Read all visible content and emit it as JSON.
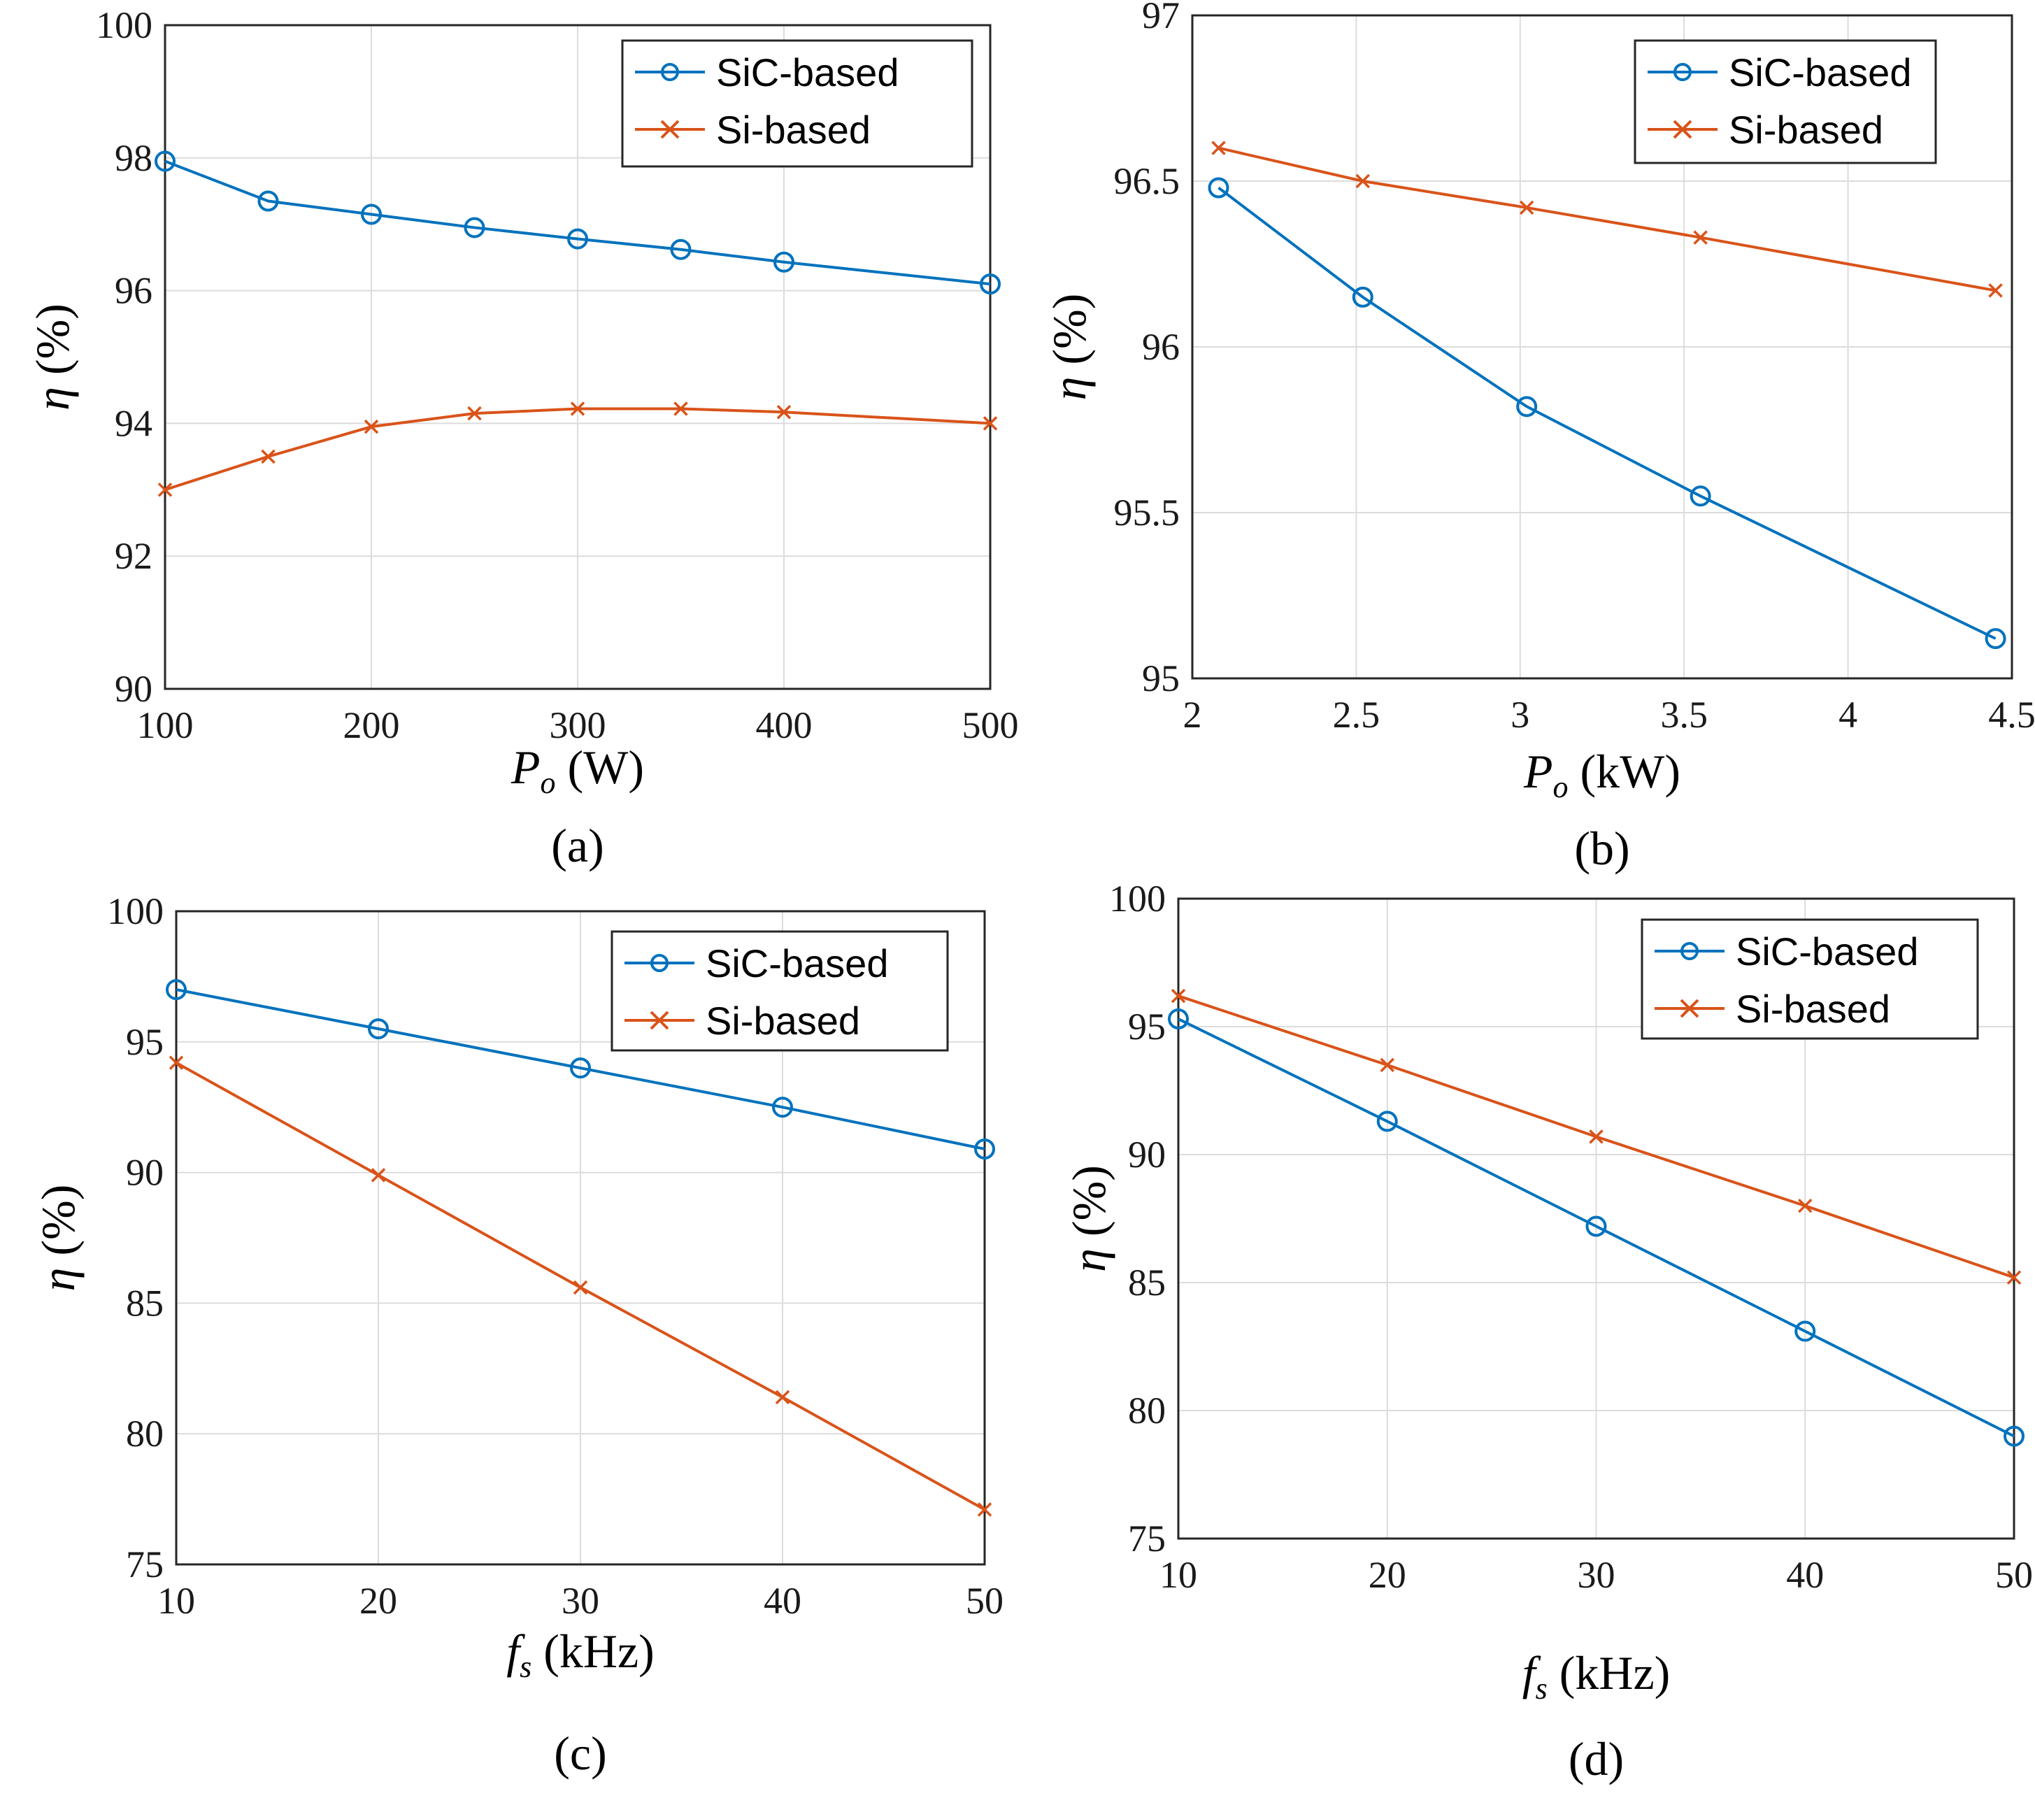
{
  "colors": {
    "sic": "#0072BD",
    "si": "#D95319",
    "grid": "#dcdcdc",
    "axis": "#262626"
  },
  "chart_data": [
    {
      "type": "line",
      "panel_label": "(a)",
      "xlabel": {
        "var": "P",
        "sub": "o",
        "unit": " (W)"
      },
      "ylabel": {
        "var": "η",
        "unit": " (%)"
      },
      "xlim": [
        100,
        500
      ],
      "ylim": [
        90,
        100
      ],
      "xticks": [
        100,
        200,
        300,
        400,
        500
      ],
      "xtick_labels": [
        "100",
        "200",
        "300",
        "400",
        "500"
      ],
      "yticks": [
        90,
        92,
        94,
        96,
        98,
        100
      ],
      "ytick_labels": [
        "90",
        "92",
        "94",
        "96",
        "98",
        "100"
      ],
      "legend_position": "top-right",
      "series": [
        {
          "name": "SiC-based",
          "marker": "circle",
          "color_key": "sic",
          "x": [
            100,
            150,
            200,
            250,
            300,
            350,
            400,
            500
          ],
          "y": [
            97.95,
            97.35,
            97.15,
            96.95,
            96.78,
            96.62,
            96.43,
            96.1
          ]
        },
        {
          "name": "Si-based",
          "marker": "cross",
          "color_key": "si",
          "x": [
            100,
            150,
            200,
            250,
            300,
            350,
            400,
            500
          ],
          "y": [
            93.0,
            93.5,
            93.95,
            94.15,
            94.22,
            94.22,
            94.17,
            94.0
          ]
        }
      ]
    },
    {
      "type": "line",
      "panel_label": "(b)",
      "xlabel": {
        "var": "P",
        "sub": "o",
        "unit": " (kW)"
      },
      "ylabel": {
        "var": "η",
        "unit": " (%)"
      },
      "xlim": [
        2,
        4.5
      ],
      "ylim": [
        95,
        97
      ],
      "xticks": [
        2,
        2.5,
        3,
        3.5,
        4,
        4.5
      ],
      "xtick_labels": [
        "2",
        "2.5",
        "3",
        "3.5",
        "4",
        "4.5"
      ],
      "yticks": [
        95,
        95.5,
        96,
        96.5,
        97
      ],
      "ytick_labels": [
        "95",
        "95.5",
        "96",
        "96.5",
        "97"
      ],
      "legend_position": "top-right",
      "series": [
        {
          "name": "SiC-based",
          "marker": "circle",
          "color_key": "sic",
          "x": [
            2.08,
            2.52,
            3.02,
            3.55,
            4.45
          ],
          "y": [
            96.48,
            96.15,
            95.82,
            95.55,
            95.12
          ]
        },
        {
          "name": "Si-based",
          "marker": "cross",
          "color_key": "si",
          "x": [
            2.08,
            2.52,
            3.02,
            3.55,
            4.45
          ],
          "y": [
            96.6,
            96.5,
            96.42,
            96.33,
            96.17
          ]
        }
      ]
    },
    {
      "type": "line",
      "panel_label": "(c)",
      "xlabel": {
        "var": "f",
        "sub": "s",
        "unit": " (kHz)"
      },
      "ylabel": {
        "var": "η",
        "unit": " (%)"
      },
      "xlim": [
        10,
        50
      ],
      "ylim": [
        75,
        100
      ],
      "xticks": [
        10,
        20,
        30,
        40,
        50
      ],
      "xtick_labels": [
        "10",
        "20",
        "30",
        "40",
        "50"
      ],
      "yticks": [
        75,
        80,
        85,
        90,
        95,
        100
      ],
      "ytick_labels": [
        "75",
        "80",
        "85",
        "90",
        "95",
        "100"
      ],
      "legend_position": "top-right",
      "series": [
        {
          "name": "SiC-based",
          "marker": "circle",
          "color_key": "sic",
          "x": [
            10,
            20,
            30,
            40,
            50
          ],
          "y": [
            97.0,
            95.5,
            94.0,
            92.5,
            90.9
          ]
        },
        {
          "name": "Si-based",
          "marker": "cross",
          "color_key": "si",
          "x": [
            10,
            20,
            30,
            40,
            50
          ],
          "y": [
            94.2,
            89.9,
            85.6,
            81.4,
            77.1
          ]
        }
      ]
    },
    {
      "type": "line",
      "panel_label": "(d)",
      "xlabel": {
        "var": "f",
        "sub": "s",
        "unit": " (kHz)"
      },
      "ylabel": {
        "var": "η",
        "unit": " (%)"
      },
      "xlim": [
        10,
        50
      ],
      "ylim": [
        75,
        100
      ],
      "xticks": [
        10,
        20,
        30,
        40,
        50
      ],
      "xtick_labels": [
        "10",
        "20",
        "30",
        "40",
        "50"
      ],
      "yticks": [
        75,
        80,
        85,
        90,
        95,
        100
      ],
      "ytick_labels": [
        "75",
        "80",
        "85",
        "90",
        "95",
        "100"
      ],
      "legend_position": "top-right",
      "series": [
        {
          "name": "SiC-based",
          "marker": "circle",
          "color_key": "sic",
          "x": [
            10,
            20,
            30,
            40,
            50
          ],
          "y": [
            95.3,
            91.3,
            87.2,
            83.1,
            79.0
          ]
        },
        {
          "name": "Si-based",
          "marker": "cross",
          "color_key": "si",
          "x": [
            10,
            20,
            30,
            40,
            50
          ],
          "y": [
            96.2,
            93.5,
            90.7,
            88.0,
            85.2
          ]
        }
      ]
    }
  ]
}
